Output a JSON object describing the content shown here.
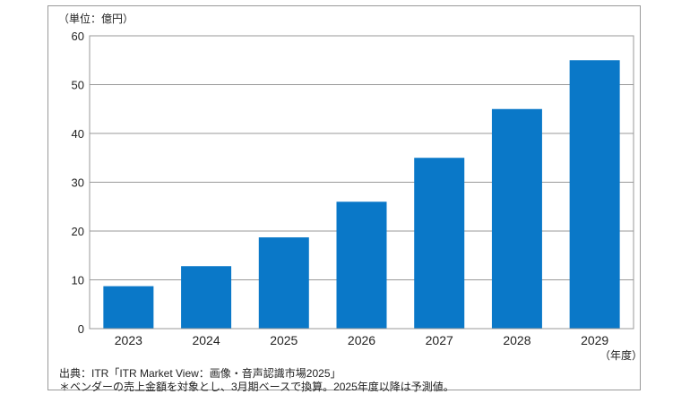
{
  "chart_data": {
    "type": "bar",
    "unit_label": "（単位：億円）",
    "x_unit_label": "（年度）",
    "categories": [
      "2023",
      "2024",
      "2025",
      "2026",
      "2027",
      "2028",
      "2029"
    ],
    "values": [
      8.7,
      12.8,
      18.7,
      26.0,
      35.0,
      45.0,
      55.0
    ],
    "ylim": [
      0,
      60
    ],
    "yticks": [
      0,
      10,
      20,
      30,
      40,
      50,
      60
    ],
    "grid": true,
    "bar_color": "#0a78c8"
  },
  "notes": {
    "source": "出典：ITR「ITR Market View：画像・音声認識市場2025」",
    "footnote": "＊ベンダーの売上金額を対象とし、3月期ベースで換算。2025年度以降は予測値。"
  }
}
